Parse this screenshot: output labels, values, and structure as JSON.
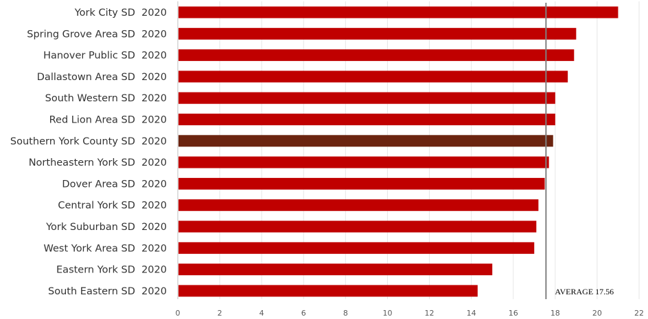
{
  "chart_data": {
    "type": "bar",
    "orientation": "horizontal",
    "categories": [
      "York City SD  2020",
      "Spring Grove Area SD  2020",
      "Hanover Public SD  2020",
      "Dallastown Area SD  2020",
      "South Western SD  2020",
      "Red Lion Area SD  2020",
      "Southern York County SD  2020",
      "Northeastern York SD  2020",
      "Dover Area SD  2020",
      "Central York SD  2020",
      "York Suburban SD  2020",
      "West York Area SD  2020",
      "Eastern York SD  2020",
      "South Eastern SD  2020"
    ],
    "values": [
      21.0,
      19.0,
      18.9,
      18.6,
      18.0,
      18.0,
      17.9,
      17.7,
      17.5,
      17.2,
      17.1,
      17.0,
      15.0,
      14.3
    ],
    "highlight_category": "Southern York County SD  2020",
    "xlim": [
      0,
      22
    ],
    "xticks": [
      0,
      2,
      4,
      6,
      8,
      10,
      12,
      14,
      16,
      18,
      20,
      22
    ],
    "grid": true,
    "legend": "none",
    "reference_line": {
      "value": 17.56,
      "label": "AVERAGE 17.56"
    },
    "colors": {
      "bar": "#c00000",
      "highlight": "#6b2410",
      "reference_line": "#808080"
    }
  }
}
